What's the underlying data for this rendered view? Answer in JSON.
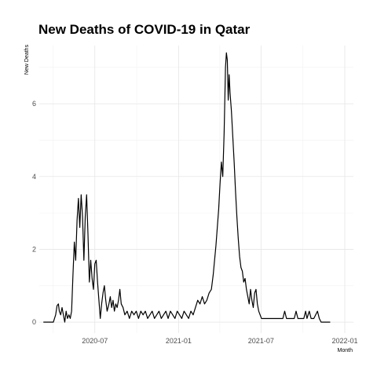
{
  "chart_data": {
    "type": "line",
    "title": "New Deaths of COVID-19 in Qatar",
    "xlabel": "Month",
    "ylabel": "New Deaths",
    "x_ticks": [
      "2020-07",
      "2021-01",
      "2021-07",
      "2022-01"
    ],
    "y_ticks": [
      0,
      2,
      4,
      6
    ],
    "xlim": [
      "2020-03-01",
      "2022-01-20"
    ],
    "ylim": [
      -0.3,
      7.6
    ],
    "grid": true,
    "series": [
      {
        "values": [
          [
            "2020-03-10",
            0
          ],
          [
            "2020-04-01",
            0
          ],
          [
            "2020-04-06",
            0.2
          ],
          [
            "2020-04-09",
            0.45
          ],
          [
            "2020-04-12",
            0.5
          ],
          [
            "2020-04-14",
            0.3
          ],
          [
            "2020-04-17",
            0.2
          ],
          [
            "2020-04-20",
            0.4
          ],
          [
            "2020-04-23",
            0.2
          ],
          [
            "2020-04-26",
            0
          ],
          [
            "2020-04-29",
            0.3
          ],
          [
            "2020-05-02",
            0.1
          ],
          [
            "2020-05-05",
            0.2
          ],
          [
            "2020-05-08",
            0.1
          ],
          [
            "2020-05-11",
            0.3
          ],
          [
            "2020-05-14",
            1.3
          ],
          [
            "2020-05-17",
            2.2
          ],
          [
            "2020-05-20",
            1.7
          ],
          [
            "2020-05-23",
            2.8
          ],
          [
            "2020-05-26",
            3.4
          ],
          [
            "2020-05-29",
            2.6
          ],
          [
            "2020-06-01",
            3.5
          ],
          [
            "2020-06-04",
            2.9
          ],
          [
            "2020-06-07",
            1.7
          ],
          [
            "2020-06-10",
            2.9
          ],
          [
            "2020-06-13",
            3.5
          ],
          [
            "2020-06-16",
            2.4
          ],
          [
            "2020-06-19",
            1.1
          ],
          [
            "2020-06-22",
            1.7
          ],
          [
            "2020-06-25",
            1.2
          ],
          [
            "2020-06-28",
            0.9
          ],
          [
            "2020-07-01",
            1.6
          ],
          [
            "2020-07-04",
            1.7
          ],
          [
            "2020-07-07",
            1.1
          ],
          [
            "2020-07-10",
            0.6
          ],
          [
            "2020-07-13",
            0.1
          ],
          [
            "2020-07-16",
            0.5
          ],
          [
            "2020-07-19",
            0.8
          ],
          [
            "2020-07-22",
            1.0
          ],
          [
            "2020-07-25",
            0.6
          ],
          [
            "2020-07-28",
            0.3
          ],
          [
            "2020-08-01",
            0.5
          ],
          [
            "2020-08-04",
            0.7
          ],
          [
            "2020-08-07",
            0.4
          ],
          [
            "2020-08-10",
            0.6
          ],
          [
            "2020-08-13",
            0.3
          ],
          [
            "2020-08-16",
            0.5
          ],
          [
            "2020-08-19",
            0.4
          ],
          [
            "2020-08-22",
            0.6
          ],
          [
            "2020-08-25",
            0.9
          ],
          [
            "2020-08-28",
            0.5
          ],
          [
            "2020-09-01",
            0.4
          ],
          [
            "2020-09-05",
            0.2
          ],
          [
            "2020-09-10",
            0.3
          ],
          [
            "2020-09-15",
            0.1
          ],
          [
            "2020-09-20",
            0.3
          ],
          [
            "2020-09-25",
            0.2
          ],
          [
            "2020-09-30",
            0.3
          ],
          [
            "2020-10-05",
            0.1
          ],
          [
            "2020-10-10",
            0.3
          ],
          [
            "2020-10-15",
            0.2
          ],
          [
            "2020-10-20",
            0.3
          ],
          [
            "2020-10-25",
            0.1
          ],
          [
            "2020-10-30",
            0.2
          ],
          [
            "2020-11-04",
            0.3
          ],
          [
            "2020-11-09",
            0.1
          ],
          [
            "2020-11-14",
            0.2
          ],
          [
            "2020-11-19",
            0.3
          ],
          [
            "2020-11-24",
            0.1
          ],
          [
            "2020-11-29",
            0.2
          ],
          [
            "2020-12-04",
            0.3
          ],
          [
            "2020-12-09",
            0.1
          ],
          [
            "2020-12-14",
            0.3
          ],
          [
            "2020-12-19",
            0.2
          ],
          [
            "2020-12-24",
            0.1
          ],
          [
            "2020-12-29",
            0.3
          ],
          [
            "2021-01-03",
            0.2
          ],
          [
            "2021-01-08",
            0.1
          ],
          [
            "2021-01-13",
            0.3
          ],
          [
            "2021-01-18",
            0.2
          ],
          [
            "2021-01-23",
            0.1
          ],
          [
            "2021-01-28",
            0.3
          ],
          [
            "2021-02-02",
            0.2
          ],
          [
            "2021-02-07",
            0.4
          ],
          [
            "2021-02-12",
            0.6
          ],
          [
            "2021-02-17",
            0.5
          ],
          [
            "2021-02-22",
            0.7
          ],
          [
            "2021-02-27",
            0.5
          ],
          [
            "2021-03-04",
            0.6
          ],
          [
            "2021-03-09",
            0.8
          ],
          [
            "2021-03-14",
            0.9
          ],
          [
            "2021-03-18",
            1.3
          ],
          [
            "2021-03-21",
            1.7
          ],
          [
            "2021-03-24",
            2.1
          ],
          [
            "2021-03-27",
            2.6
          ],
          [
            "2021-03-30",
            3.1
          ],
          [
            "2021-04-02",
            3.8
          ],
          [
            "2021-04-05",
            4.4
          ],
          [
            "2021-04-08",
            4.0
          ],
          [
            "2021-04-11",
            5.2
          ],
          [
            "2021-04-14",
            7.0
          ],
          [
            "2021-04-16",
            7.4
          ],
          [
            "2021-04-18",
            7.2
          ],
          [
            "2021-04-20",
            6.1
          ],
          [
            "2021-04-22",
            6.8
          ],
          [
            "2021-04-24",
            6.3
          ],
          [
            "2021-04-27",
            5.8
          ],
          [
            "2021-04-30",
            5.1
          ],
          [
            "2021-05-03",
            4.4
          ],
          [
            "2021-05-06",
            3.6
          ],
          [
            "2021-05-09",
            2.9
          ],
          [
            "2021-05-12",
            2.3
          ],
          [
            "2021-05-15",
            1.8
          ],
          [
            "2021-05-18",
            1.5
          ],
          [
            "2021-05-21",
            1.4
          ],
          [
            "2021-05-24",
            1.1
          ],
          [
            "2021-05-27",
            1.2
          ],
          [
            "2021-05-30",
            0.9
          ],
          [
            "2021-06-02",
            0.7
          ],
          [
            "2021-06-05",
            0.5
          ],
          [
            "2021-06-08",
            0.9
          ],
          [
            "2021-06-11",
            0.6
          ],
          [
            "2021-06-14",
            0.4
          ],
          [
            "2021-06-17",
            0.8
          ],
          [
            "2021-06-20",
            0.9
          ],
          [
            "2021-06-23",
            0.5
          ],
          [
            "2021-06-26",
            0.3
          ],
          [
            "2021-06-29",
            0.2
          ],
          [
            "2021-07-02",
            0.1
          ],
          [
            "2021-07-10",
            0.1
          ],
          [
            "2021-07-20",
            0.1
          ],
          [
            "2021-08-01",
            0.1
          ],
          [
            "2021-08-10",
            0.1
          ],
          [
            "2021-08-18",
            0.1
          ],
          [
            "2021-08-22",
            0.3
          ],
          [
            "2021-08-26",
            0.1
          ],
          [
            "2021-09-05",
            0.1
          ],
          [
            "2021-09-12",
            0.1
          ],
          [
            "2021-09-16",
            0.3
          ],
          [
            "2021-09-20",
            0.1
          ],
          [
            "2021-09-26",
            0.1
          ],
          [
            "2021-10-03",
            0.1
          ],
          [
            "2021-10-07",
            0.3
          ],
          [
            "2021-10-10",
            0.1
          ],
          [
            "2021-10-15",
            0.3
          ],
          [
            "2021-10-19",
            0.1
          ],
          [
            "2021-10-25",
            0.1
          ],
          [
            "2021-11-02",
            0.3
          ],
          [
            "2021-11-06",
            0.1
          ],
          [
            "2021-11-10",
            0
          ],
          [
            "2021-11-20",
            0
          ],
          [
            "2021-11-30",
            0
          ]
        ]
      }
    ]
  }
}
